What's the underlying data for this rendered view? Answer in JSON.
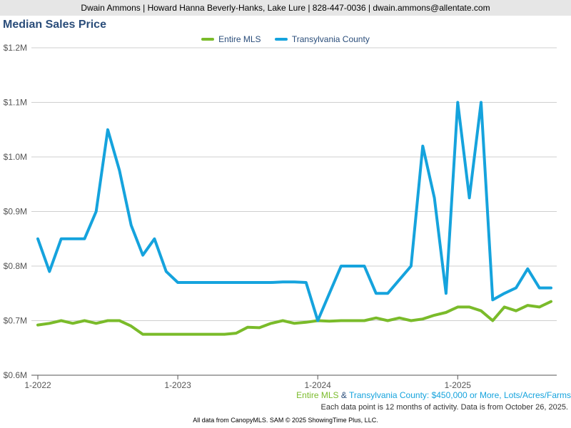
{
  "header": {
    "agent_line": "Dwain Ammons | Howard Hanna Beverly-Hanks, Lake Lure | 828-447-0036 | dwain.ammons@allentate.com"
  },
  "chart_data": {
    "type": "line",
    "title": "Median Sales Price",
    "y_unit": "USD",
    "ylim": [
      600000,
      1200000
    ],
    "yticks": [
      600000,
      700000,
      800000,
      900000,
      1000000,
      1100000,
      1200000
    ],
    "ytick_labels": [
      "$0.6M",
      "$0.7M",
      "$0.8M",
      "$0.9M",
      "$1.0M",
      "$1.1M",
      "$1.2M"
    ],
    "xticks": [
      "2022-01",
      "2023-01",
      "2024-01",
      "2025-01"
    ],
    "xtick_labels": [
      "1-2022",
      "1-2023",
      "1-2024",
      "1-2025"
    ],
    "x": [
      "2022-01",
      "2022-02",
      "2022-03",
      "2022-04",
      "2022-05",
      "2022-06",
      "2022-07",
      "2022-08",
      "2022-09",
      "2022-10",
      "2022-11",
      "2022-12",
      "2023-01",
      "2023-02",
      "2023-03",
      "2023-04",
      "2023-05",
      "2023-06",
      "2023-07",
      "2023-08",
      "2023-09",
      "2023-10",
      "2023-11",
      "2023-12",
      "2024-01",
      "2024-02",
      "2024-03",
      "2024-04",
      "2024-05",
      "2024-06",
      "2024-07",
      "2024-08",
      "2024-09",
      "2024-10",
      "2024-11",
      "2024-12",
      "2025-01",
      "2025-02",
      "2025-03",
      "2025-04",
      "2025-05",
      "2025-06",
      "2025-07",
      "2025-08",
      "2025-09"
    ],
    "series": [
      {
        "name": "Entire MLS",
        "color": "#7abb2a",
        "values": [
          692000,
          695000,
          700000,
          695000,
          700000,
          695000,
          700000,
          700000,
          690000,
          675000,
          675000,
          675000,
          675000,
          675000,
          675000,
          675000,
          675000,
          677000,
          688000,
          687000,
          695000,
          700000,
          695000,
          697000,
          700000,
          699000,
          700000,
          700000,
          700000,
          705000,
          700000,
          705000,
          700000,
          703000,
          710000,
          715000,
          725000,
          725000,
          718000,
          700000,
          725000,
          718000,
          728000,
          725000,
          735000
        ]
      },
      {
        "name": "Transylvania County",
        "color": "#15a3dd",
        "values": [
          850000,
          790000,
          850000,
          850000,
          850000,
          900000,
          1050000,
          975000,
          875000,
          820000,
          850000,
          790000,
          770000,
          770000,
          770000,
          770000,
          770000,
          770000,
          770000,
          770000,
          770000,
          771000,
          771000,
          770000,
          700000,
          750000,
          800000,
          800000,
          800000,
          750000,
          750000,
          775000,
          800000,
          1020000,
          925000,
          750000,
          1100000,
          925000,
          1100000,
          738000,
          750000,
          760000,
          795000,
          760000,
          760000
        ]
      }
    ],
    "grid": true,
    "legend_position": "top-center"
  },
  "footnote": {
    "mls_label": "Entire MLS",
    "amp": " & ",
    "county_label": "Transylvania County",
    "criteria": ": $450,000 or More, Lots/Acres/Farms"
  },
  "note": "Each data point is 12 months of activity. Data is from October 26, 2025.",
  "credit": "All data from CanopyMLS. SAM © 2025 ShowingTime Plus, LLC."
}
